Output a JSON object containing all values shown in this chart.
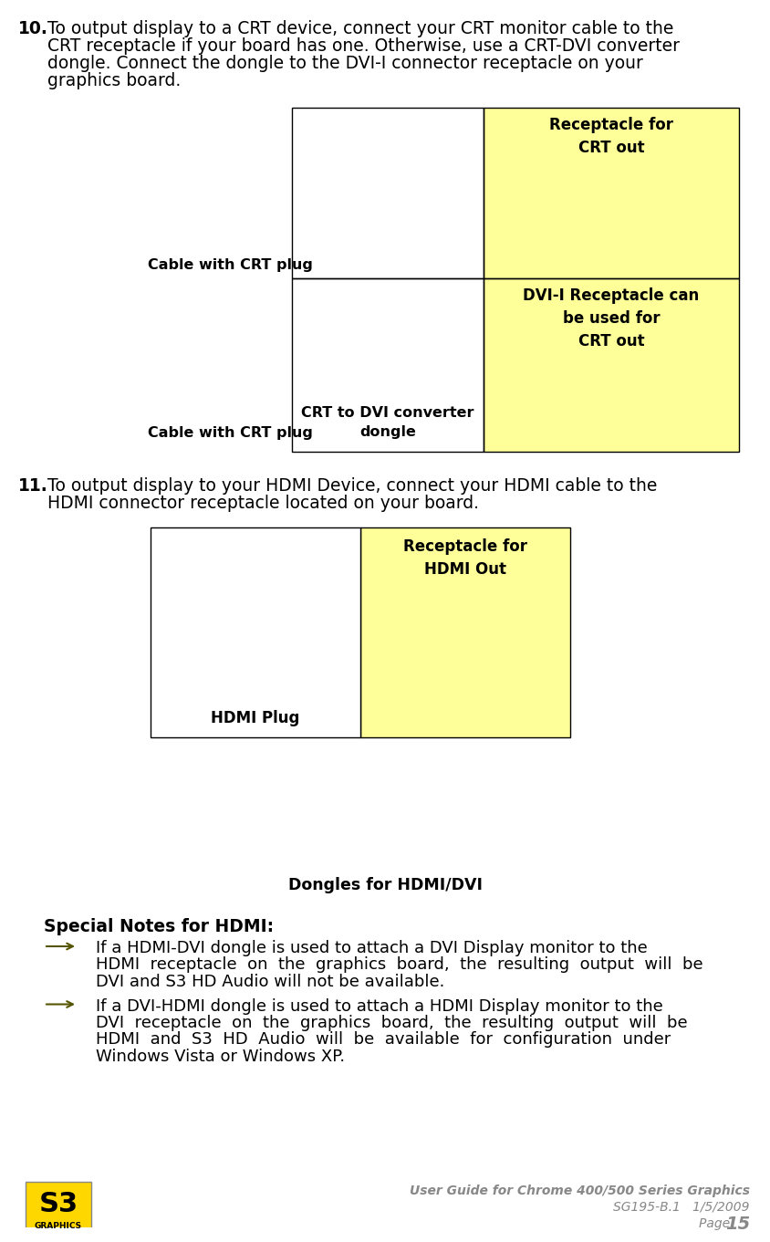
{
  "bg_color": "#ffffff",
  "yellow_bg": "#FFFF99",
  "border_color": "#000000",
  "text_color": "#000000",
  "footer_text_color": "#888888",
  "item10_num": "10.",
  "item10_lines": [
    "To output display to a CRT device, connect your CRT monitor cable to the",
    "CRT receptacle if your board has one. Otherwise, use a CRT-DVI converter",
    "dongle. Connect the dongle to the DVI-I connector receptacle on your",
    "graphics board."
  ],
  "item11_num": "11.",
  "item11_lines": [
    "To output display to your HDMI Device, connect your HDMI cable to the",
    "HDMI connector receptacle located on your board."
  ],
  "label_cable_crt1": "Cable with CRT plug",
  "label_cable_crt2": "Cable with CRT plug",
  "label_receptacle_crt": "Receptacle for\nCRT out",
  "label_dvi_receptacle": "DVI-I Receptacle can\nbe used for\nCRT out",
  "label_crt_dvi": "CRT to DVI converter\ndongle",
  "label_hdmi_plug": "HDMI Plug",
  "label_hdmi_receptacle": "Receptacle for\nHDMI Out",
  "label_dongles": "Dongles for HDMI/DVI",
  "special_notes_bold": "Special Notes for HDMI:",
  "bullet1_lines": [
    "If a HDMI-DVI dongle is used to attach a DVI Display monitor to the",
    "HDMI  receptacle  on  the  graphics  board,  the  resulting  output  will  be",
    "DVI and S3 HD Audio will not be available."
  ],
  "bullet2_lines": [
    "If a DVI-HDMI dongle is used to attach a HDMI Display monitor to the",
    "DVI  receptacle  on  the  graphics  board,  the  resulting  output  will  be",
    "HDMI  and  S3  HD  Audio  will  be  available  for  configuration  under",
    "Windows Vista or Windows XP."
  ],
  "footer_line1": "User Guide for Chrome 400/500 Series Graphics",
  "footer_line2": "SG195-B.1   1/5/2009",
  "footer_line3": "Page ",
  "footer_page": "15",
  "arrow_color": "#888844"
}
